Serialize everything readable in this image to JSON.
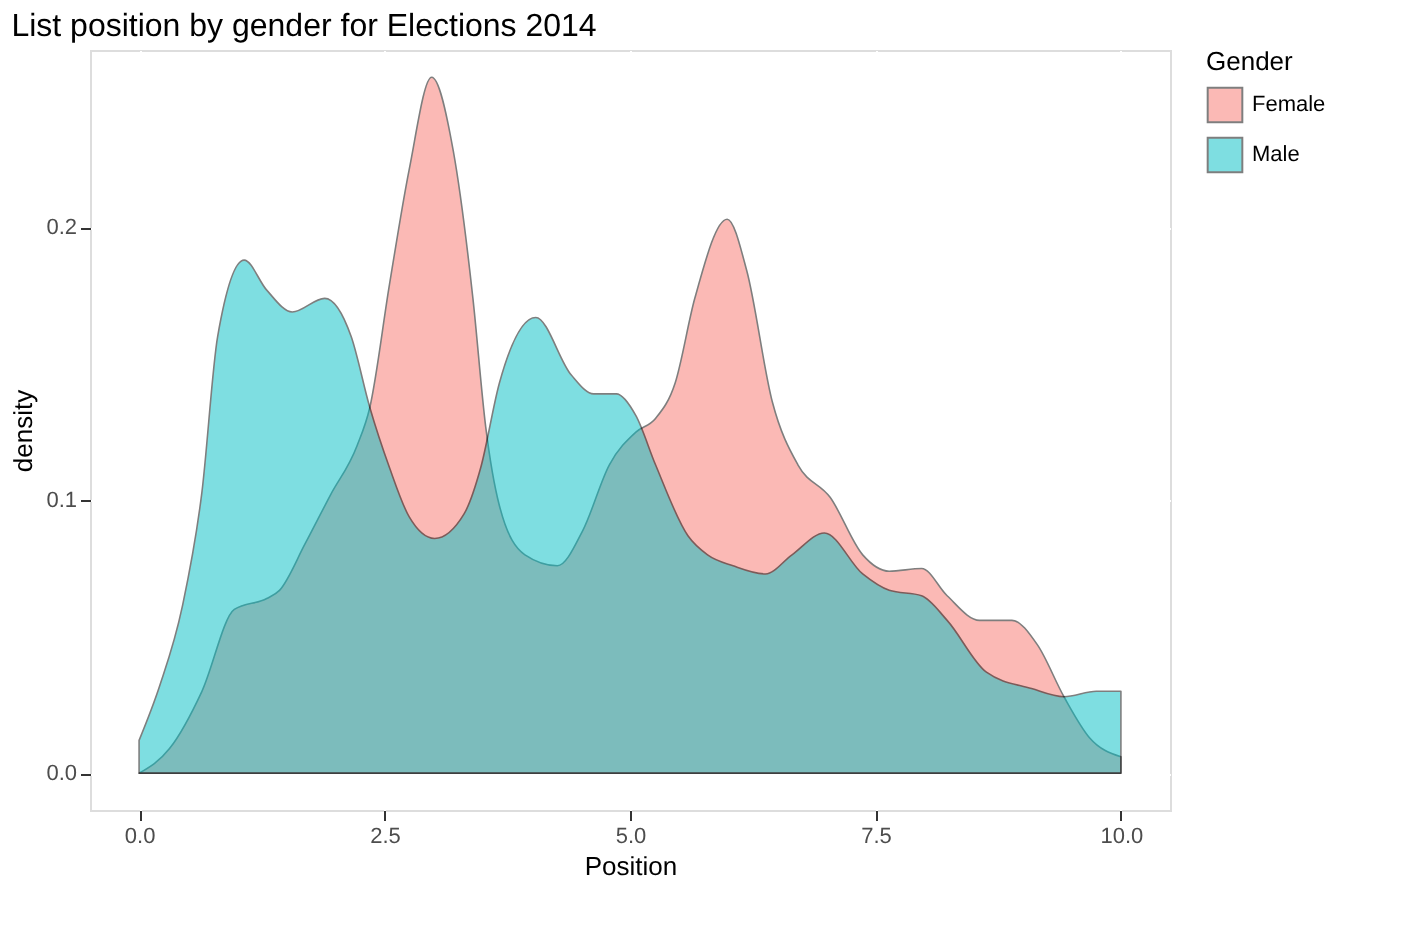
{
  "chart_data": {
    "type": "area",
    "title": "List position by gender for Elections 2014",
    "xlabel": "Position",
    "ylabel": "density",
    "legend_title": "Gender",
    "legend": "right",
    "grid": true,
    "xlim": [
      -0.5,
      10.5
    ],
    "xticks": [
      {
        "value": 0,
        "label": "0.0"
      },
      {
        "value": 2.5,
        "label": "2.5"
      },
      {
        "value": 5,
        "label": "5.0"
      },
      {
        "value": 7.5,
        "label": "7.5"
      },
      {
        "value": 10,
        "label": "10.0"
      }
    ],
    "ylim": [
      -0.0135,
      0.265
    ],
    "yticks": [
      {
        "value": 0,
        "label": "0.0"
      },
      {
        "value": 0.1,
        "label": "0.1"
      },
      {
        "value": 0.2,
        "label": "0.2"
      }
    ],
    "series": [
      {
        "name": "Female",
        "color": "#f8766d",
        "x": [
          0,
          0.31,
          0.64,
          0.97,
          1.3,
          1.43,
          1.69,
          1.95,
          2.22,
          2.35,
          2.55,
          2.75,
          2.98,
          3.2,
          3.4,
          3.53,
          3.67,
          3.93,
          4.26,
          4.52,
          4.79,
          5.06,
          5.26,
          5.46,
          5.66,
          5.99,
          6.19,
          6.45,
          6.71,
          7.04,
          7.37,
          7.64,
          7.97,
          8.23,
          8.56,
          8.89,
          9.15,
          9.42,
          9.68,
          10
        ],
        "values": [
          0.0,
          0.009,
          0.03,
          0.06,
          0.064,
          0.067,
          0.084,
          0.102,
          0.12,
          0.134,
          0.179,
          0.221,
          0.255,
          0.228,
          0.174,
          0.127,
          0.098,
          0.08,
          0.076,
          0.089,
          0.113,
          0.125,
          0.13,
          0.143,
          0.174,
          0.203,
          0.184,
          0.136,
          0.113,
          0.101,
          0.08,
          0.074,
          0.075,
          0.065,
          0.056,
          0.056,
          0.047,
          0.028,
          0.013,
          0.006
        ]
      },
      {
        "name": "Male",
        "color": "#00bfc4",
        "x": [
          0,
          0.21,
          0.44,
          0.64,
          0.8,
          1.07,
          1.3,
          1.56,
          1.89,
          2.16,
          2.35,
          2.55,
          2.75,
          3.01,
          3.31,
          3.48,
          3.67,
          4.04,
          4.4,
          4.63,
          4.86,
          5.06,
          5.26,
          5.59,
          5.79,
          6.05,
          6.38,
          6.65,
          6.98,
          7.37,
          7.64,
          7.97,
          8.23,
          8.63,
          9.09,
          9.42,
          9.75,
          10
        ],
        "values": [
          0.012,
          0.032,
          0.061,
          0.103,
          0.16,
          0.188,
          0.177,
          0.169,
          0.174,
          0.16,
          0.134,
          0.112,
          0.094,
          0.086,
          0.095,
          0.112,
          0.143,
          0.167,
          0.146,
          0.139,
          0.139,
          0.131,
          0.113,
          0.087,
          0.08,
          0.076,
          0.073,
          0.08,
          0.088,
          0.073,
          0.067,
          0.065,
          0.056,
          0.037,
          0.031,
          0.028,
          0.03,
          0.03
        ]
      }
    ]
  }
}
